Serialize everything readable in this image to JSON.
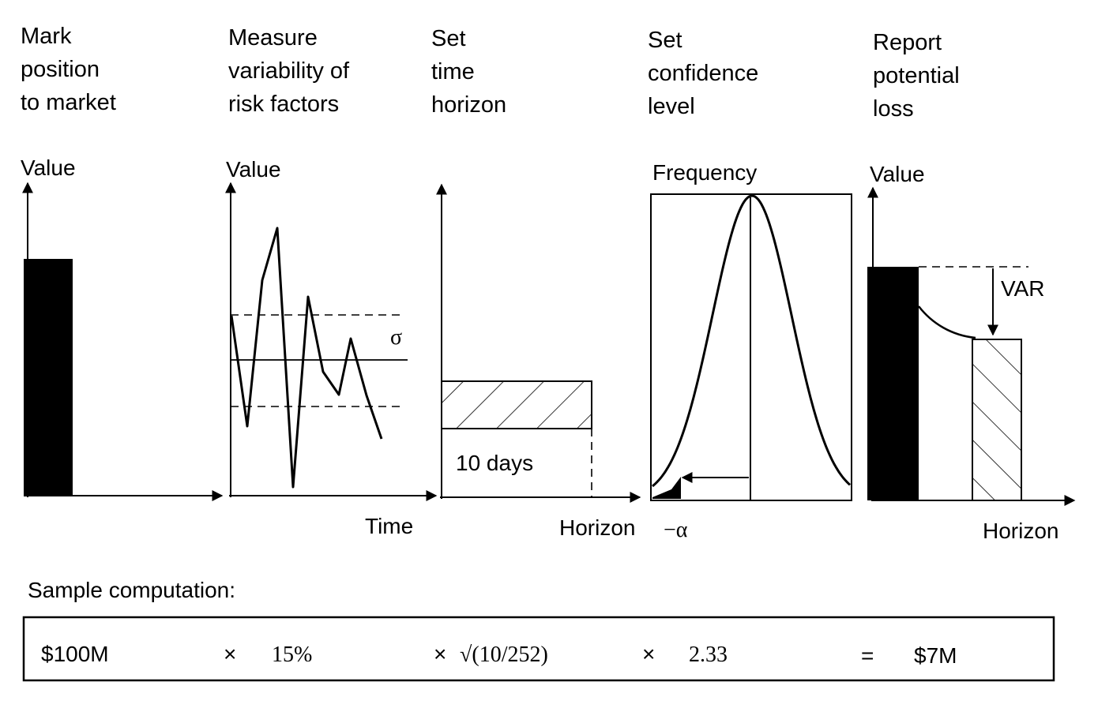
{
  "steps": [
    {
      "heading": [
        "Mark",
        "position",
        "to market"
      ],
      "axis_y": "Value",
      "axis_x": ""
    },
    {
      "heading": [
        "Measure",
        "variability of",
        "risk factors"
      ],
      "axis_y": "Value",
      "axis_x": "Time",
      "sigma": "σ"
    },
    {
      "heading": [
        "Set",
        "time",
        "horizon"
      ],
      "axis_y": "",
      "axis_x": "Horizon",
      "box_label": "10 days"
    },
    {
      "heading": [
        "Set",
        "confidence",
        "level"
      ],
      "axis_y": "Frequency",
      "axis_x": "",
      "alpha_label": "−α"
    },
    {
      "heading": [
        "Report",
        "potential",
        "loss"
      ],
      "axis_y": "Value",
      "axis_x": "Horizon",
      "var_label": "VAR"
    }
  ],
  "sample": {
    "title": "Sample computation:",
    "terms": [
      "$100M",
      "×",
      "15%",
      "×",
      "√(10/252)",
      "×",
      "2.33",
      "=",
      "$7M"
    ]
  }
}
